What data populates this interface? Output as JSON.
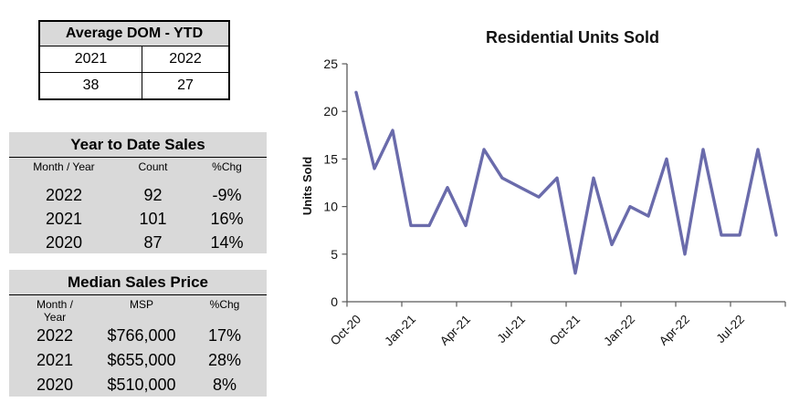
{
  "panel_bg": "#D9D9D9",
  "left_panel": {
    "avg_dom": {
      "title": "Average DOM - YTD",
      "col_headers": [
        "2021",
        "2022"
      ],
      "values": [
        "38",
        "27"
      ]
    },
    "ytd_sales": {
      "title": "Year to Date Sales",
      "col_headers": [
        "Month / Year",
        "Count",
        "%Chg"
      ],
      "rows": [
        [
          "2022",
          "92",
          "-9%"
        ],
        [
          "2021",
          "101",
          "16%"
        ],
        [
          "2020",
          "87",
          "14%"
        ]
      ]
    },
    "median_sales_price": {
      "title": "Median Sales Price",
      "col_headers": [
        "Month / Year",
        "MSP",
        "%Chg"
      ],
      "rows": [
        [
          "2022",
          "$766,000",
          "17%"
        ],
        [
          "2021",
          "$655,000",
          "28%"
        ],
        [
          "2020",
          "$510,000",
          "8%"
        ]
      ]
    }
  },
  "chart_data": {
    "type": "line",
    "title": "Residential Units Sold",
    "ylabel": "Units Sold",
    "xlabel": "",
    "ylim": [
      0,
      25
    ],
    "yticks": [
      0,
      5,
      10,
      15,
      20,
      25
    ],
    "x": [
      "Oct-20",
      "Nov-20",
      "Dec-20",
      "Jan-21",
      "Feb-21",
      "Mar-21",
      "Apr-21",
      "May-21",
      "Jun-21",
      "Jul-21",
      "Aug-21",
      "Sep-21",
      "Oct-21",
      "Nov-21",
      "Dec-21",
      "Jan-22",
      "Feb-22",
      "Mar-22",
      "Apr-22",
      "May-22",
      "Jun-22",
      "Jul-22",
      "Aug-22",
      "Sep-22"
    ],
    "values": [
      22,
      14,
      18,
      8,
      8,
      12,
      8,
      16,
      13,
      12,
      11,
      13,
      3,
      13,
      6,
      10,
      9,
      15,
      5,
      16,
      7,
      7,
      16,
      7
    ],
    "x_label_every": 3,
    "x_tick_labels": [
      "Oct-20",
      "Jan-21",
      "Apr-21",
      "Jul-21",
      "Oct-21",
      "Jan-22",
      "Apr-22",
      "Jul-22"
    ],
    "line_color": "#6A6BAB",
    "axis_color": "#595959",
    "grid": false,
    "legend": false
  }
}
